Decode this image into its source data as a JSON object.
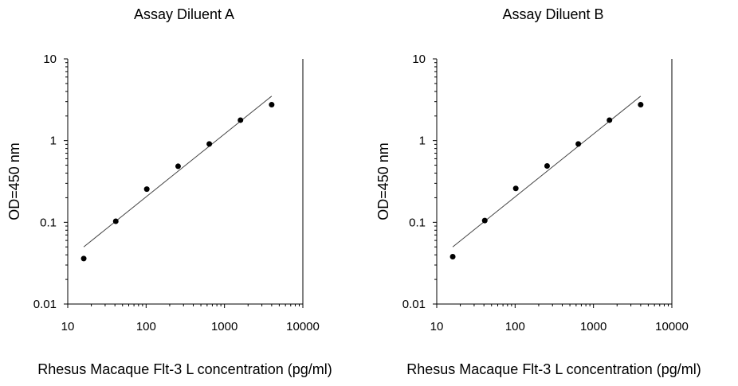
{
  "chart_data": [
    {
      "type": "scatter",
      "title": "Assay Diluent A",
      "xlabel": "Rhesus  Macaque Flt-3 L concentration (pg/ml)",
      "ylabel": "OD=450 nm",
      "x_scale": "log",
      "y_scale": "log",
      "xlim": [
        10,
        10000
      ],
      "ylim": [
        0.01,
        10
      ],
      "x_ticks": [
        "10",
        "100",
        "1000",
        "10000"
      ],
      "y_ticks": [
        "0.01",
        "0.1",
        "1",
        "10"
      ],
      "grid": false,
      "series": [
        {
          "x": [
            16,
            41,
            102,
            256,
            640,
            1600,
            4000
          ],
          "y": [
            0.036,
            0.103,
            0.255,
            0.485,
            0.91,
            1.78,
            2.75
          ]
        }
      ],
      "fit_line": {
        "x": [
          16,
          4000
        ],
        "y": [
          0.05,
          3.5
        ]
      }
    },
    {
      "type": "scatter",
      "title": "Assay Diluent B",
      "xlabel": "Rhesus  Macaque Flt-3 L concentration (pg/ml)",
      "ylabel": "OD=450 nm",
      "x_scale": "log",
      "y_scale": "log",
      "xlim": [
        10,
        10000
      ],
      "ylim": [
        0.01,
        10
      ],
      "x_ticks": [
        "10",
        "100",
        "1000",
        "10000"
      ],
      "y_ticks": [
        "0.01",
        "0.1",
        "1",
        "10"
      ],
      "grid": false,
      "series": [
        {
          "x": [
            16,
            41,
            102,
            256,
            640,
            1600,
            4000
          ],
          "y": [
            0.038,
            0.105,
            0.26,
            0.49,
            0.91,
            1.78,
            2.75
          ]
        }
      ],
      "fit_line": {
        "x": [
          16,
          4000
        ],
        "y": [
          0.05,
          3.5
        ]
      }
    }
  ]
}
